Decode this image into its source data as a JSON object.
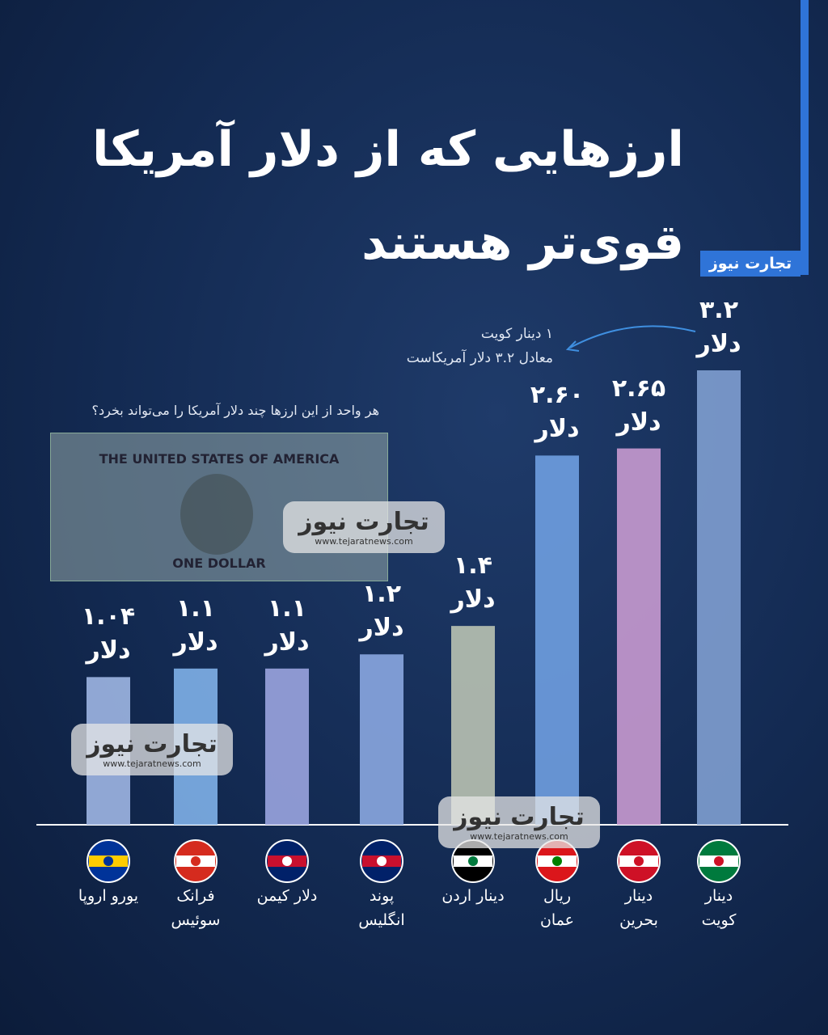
{
  "chart_data": {
    "type": "bar",
    "title": [
      "ارزهایی که از دلار آمریکا",
      "قوی‌تر هستند"
    ],
    "logo": "تجارت نیوز",
    "subtitle": "هر واحد از این ارزها چند دلار آمریکا را می‌تواند بخرد؟",
    "annotation": [
      "۱ دینار کویت",
      "معادل ۳.۲ دلار آمریکاست"
    ],
    "watermark": {
      "name": "تجارت نیوز",
      "url": "www.tejaratnews.com"
    },
    "bill": {
      "top": "THE UNITED STATES OF AMERICA",
      "bottom": "ONE DOLLAR"
    },
    "categories": [
      "دینار کویت",
      "دینار بحرین",
      "ریال عمان",
      "دینار اردن",
      "پوند انگلیس",
      "دلار کیمن",
      "فرانک سوئیس",
      "یورو اروپا"
    ],
    "values": [
      3.2,
      2.65,
      2.6,
      1.4,
      1.2,
      1.1,
      1.1,
      1.04
    ],
    "value_labels": [
      "۳.۲",
      "۲.۶۵",
      "۲.۶۰",
      "۱.۴",
      "۱.۲",
      "۱.۱",
      "۱.۱",
      "۱.۰۴"
    ],
    "unit": "دلار",
    "colors": [
      "#7f9fd0",
      "#c89ad0",
      "#6f9ee0",
      "#b9c2b2",
      "#8aa7e0",
      "#9aa4df",
      "#7fb0e8",
      "#9fb6e3"
    ]
  }
}
